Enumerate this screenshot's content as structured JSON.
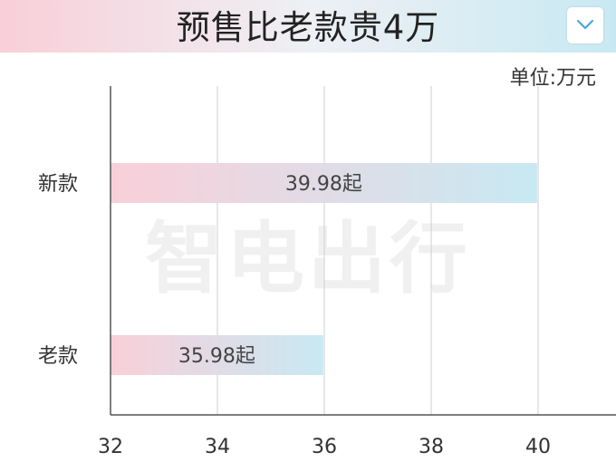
{
  "header": {
    "title": "预售比老款贵4万",
    "dropdown_icon": "chevron-down-icon",
    "colors": {
      "gradient_left": "#f9cfd9",
      "gradient_right": "#c8e9f3"
    }
  },
  "unit_label": "单位:万元",
  "watermark": "智电出行",
  "chart_data": {
    "type": "bar",
    "orientation": "horizontal",
    "title": "预售比老款贵4万",
    "unit": "单位:万元",
    "categories": [
      "新款",
      "老款"
    ],
    "values": [
      39.98,
      35.98
    ],
    "value_labels": [
      "39.98起",
      "35.98起"
    ],
    "xlim": [
      32,
      41.2
    ],
    "xticks": [
      32,
      34,
      36,
      38,
      40
    ],
    "grid": true,
    "bar_gradient": [
      "#f9cfd9",
      "#c8e9f3"
    ]
  }
}
